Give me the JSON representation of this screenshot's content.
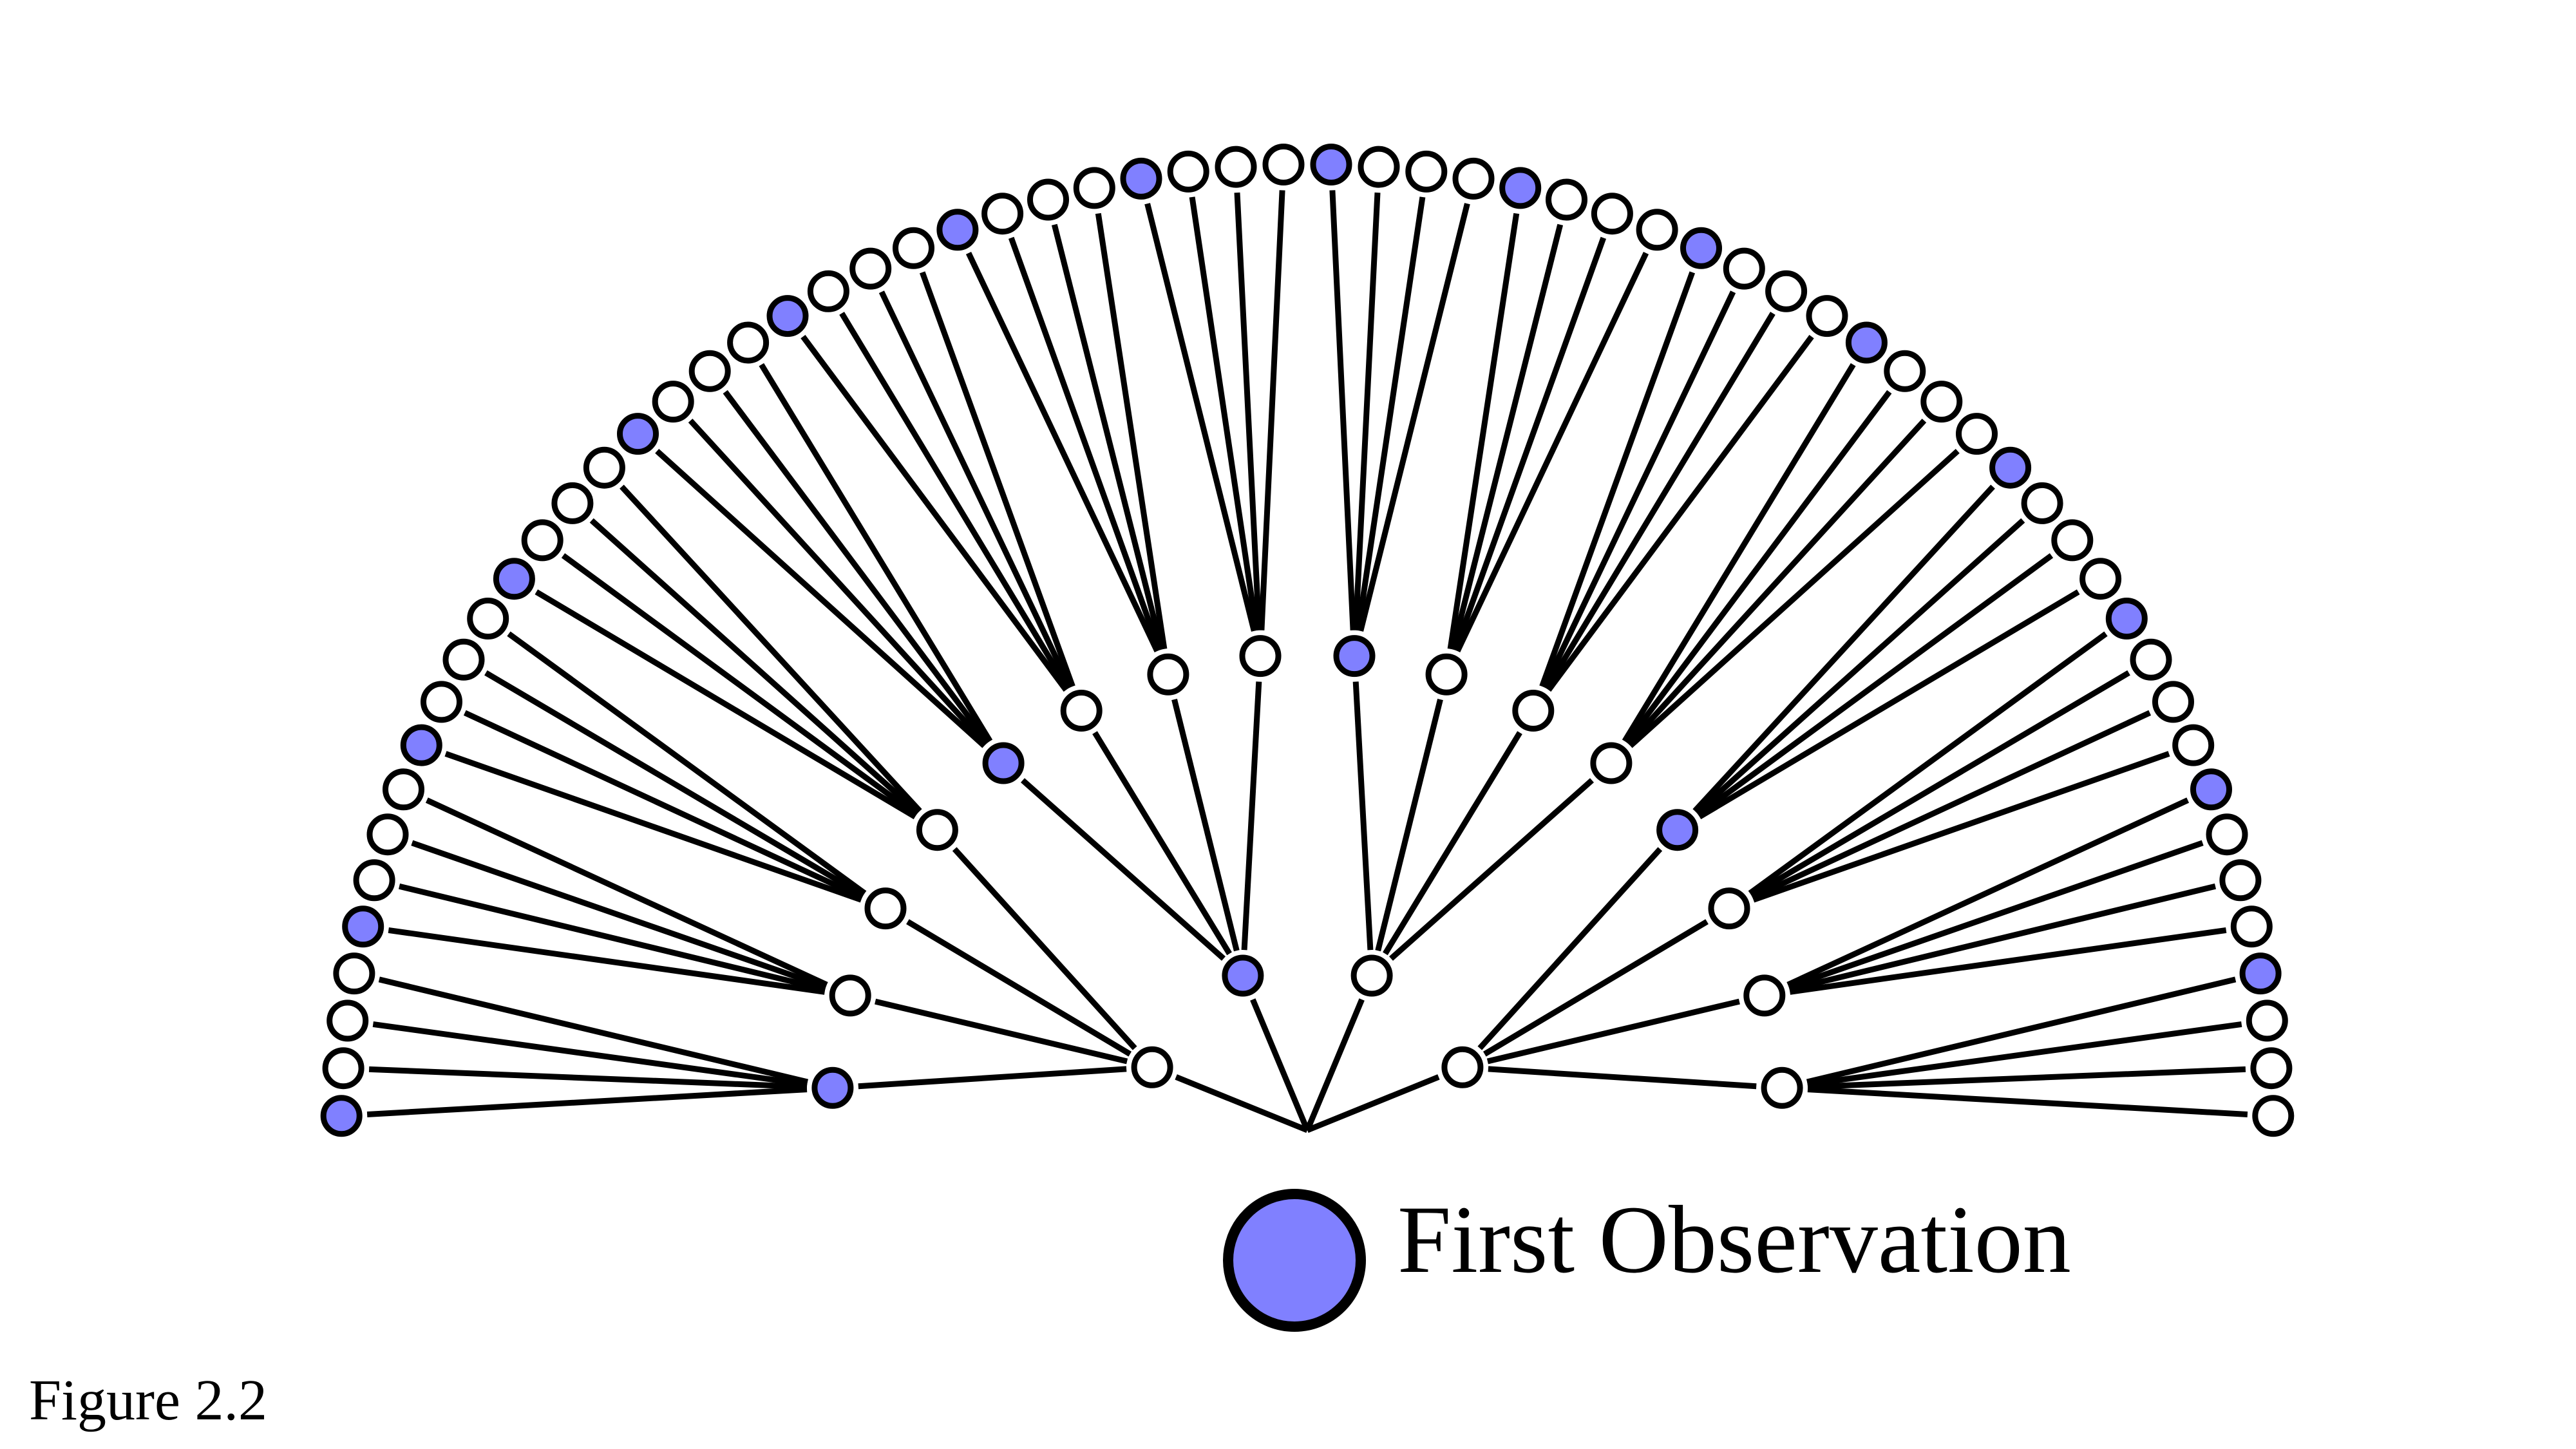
{
  "legend": {
    "label": "First Observation",
    "marker_color": "#8080ff"
  },
  "caption": "Figure 2.2",
  "colors": {
    "highlighted": "#8080ff",
    "empty": "#ffffff",
    "stroke": "#000000"
  },
  "tree": {
    "levels": 3,
    "branching": 4,
    "first_level_observed": [
      1
    ],
    "second_level_observed_index": 0,
    "third_level_observed_index": 0
  }
}
